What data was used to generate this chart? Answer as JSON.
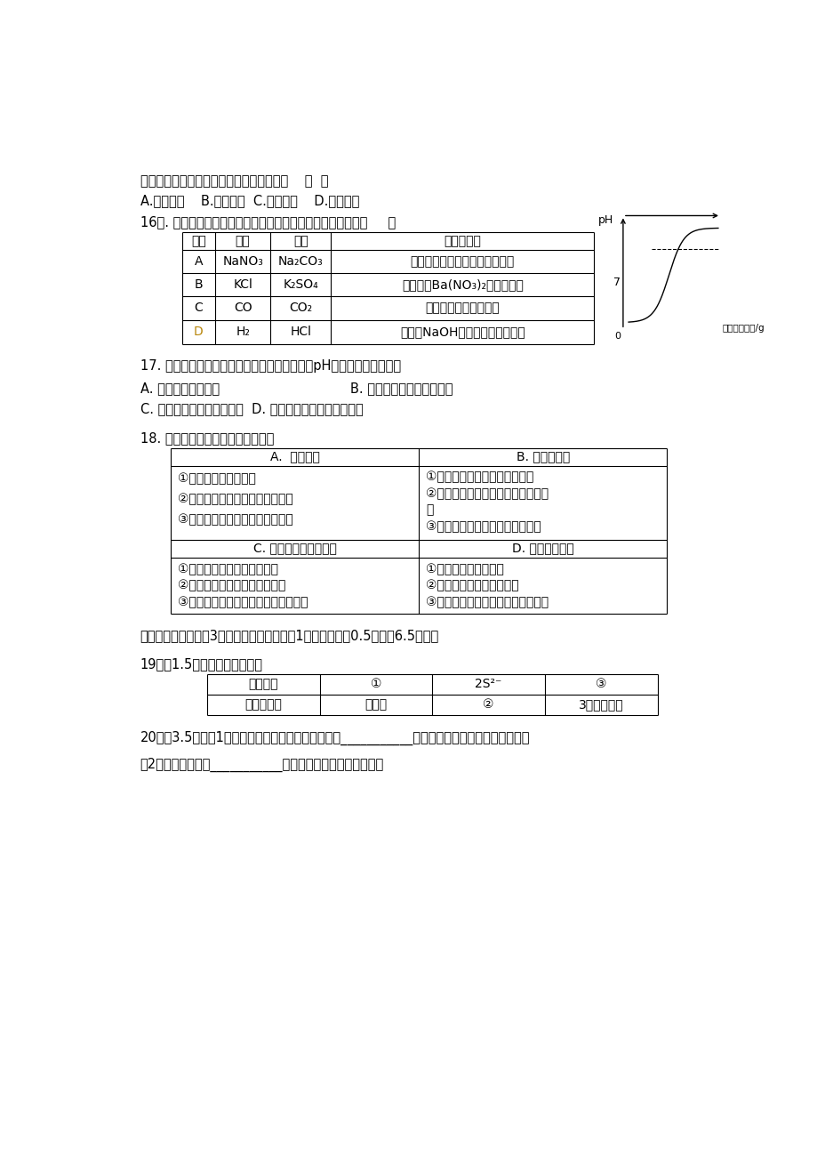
{
  "bg_color": "#ffffff",
  "line1": "后，两烧杯底部均有固体剩余，在此时天平    （  ）",
  "line2": "A.偏向左边    B.偏向右边  C.仍然平衡    D.无法判断",
  "q16": "16．. 除去下列物质中的少量杂质，所用试剂和方法正确的是（     ）",
  "q17": "17. 在探究盐酸的性质时，下列实验中测得溶液pH的变化符合右图的是",
  "q17_A": "A. 向盐酸中加水稀释",
  "q17_B": "B. 向盐酸中加入硝酸银溶液",
  "q17_C": "C. 向盐酸中加入氯化钠溶液  D. 向盐酸中加入氢氧化钡溶液",
  "q18": "18. 下列归纳总结完全正确的一组是",
  "section2": "二、填空题（本题共3小题，化学方程式每个1分，其余每空0.5分，共6.5分。）",
  "q19": "19．（1.5分）填写下列表格：",
  "q20_1": "20．（3.5分）（1）青少年多食用豆类、虾皮等富含___________元素的食物可以有效预防佝偻病；",
  "q20_2": "（2）利用活性炭的___________性可以有效地除去冰箱异味；"
}
